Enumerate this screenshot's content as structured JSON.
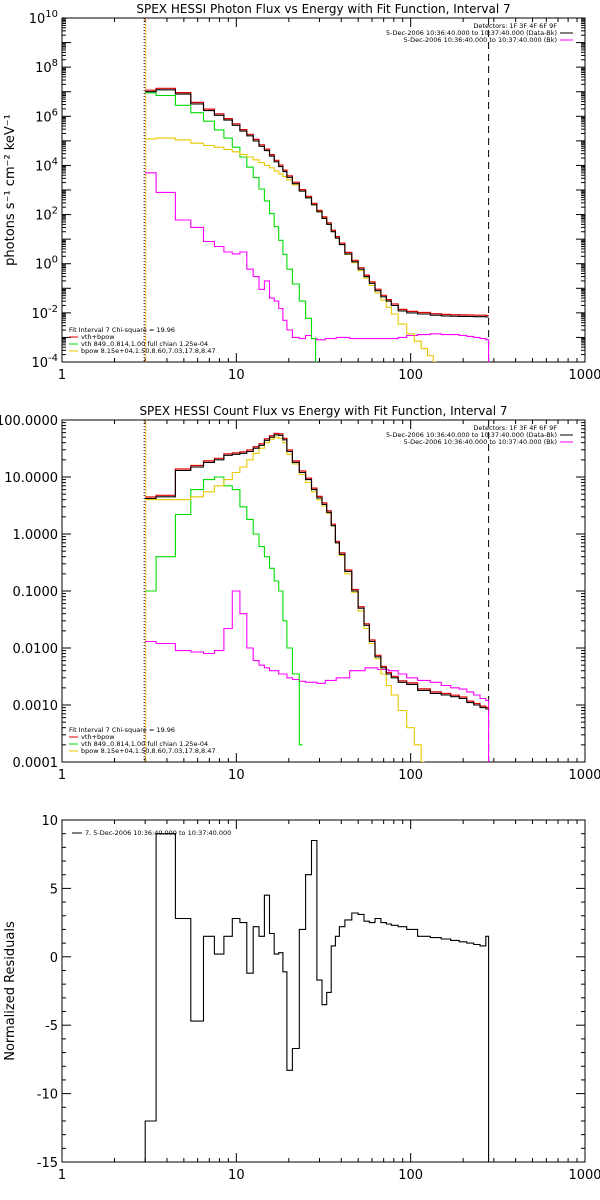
{
  "colors": {
    "data": "#000000",
    "background_sub": "#ff00ff",
    "thermal": "#00dd00",
    "power_law": "#e8c800",
    "total_fit": "#e00000",
    "fit_range_marker": "#ff8c00"
  },
  "chart_data": [
    {
      "type": "line",
      "title": "SPEX HESSI Photon Flux vs Energy with Fit Function, Interval 7",
      "xlabel": "",
      "ylabel": "photons s⁻¹ cm⁻² keV⁻¹",
      "xscale": "log",
      "yscale": "log",
      "xlim": [
        1,
        1000
      ],
      "ylim": [
        0.0001,
        10000000000
      ],
      "x_ticks": [
        "1",
        "10",
        "100",
        "1000"
      ],
      "y_ticks": [
        {
          "value": 0.0001,
          "base": "10",
          "exp": "-4"
        },
        {
          "value": 0.01,
          "base": "10",
          "exp": "-2"
        },
        {
          "value": 1,
          "base": "10",
          "exp": "0"
        },
        {
          "value": 100,
          "base": "10",
          "exp": "2"
        },
        {
          "value": 10000,
          "base": "10",
          "exp": "4"
        },
        {
          "value": 1000000,
          "base": "10",
          "exp": "6"
        },
        {
          "value": 100000000,
          "base": "10",
          "exp": "8"
        },
        {
          "value": 10000000000,
          "base": "10",
          "exp": "10"
        }
      ],
      "vlines": [
        {
          "x": 3,
          "style": "dotted"
        },
        {
          "x": 280,
          "style": "dashed"
        }
      ],
      "legend_right": {
        "position": "top-right",
        "lines": [
          "Detectors: 1F 3F 4F 6F 9F",
          "5-Dec-2006 10:36:40.000 to 10:37:40.000 (Data-Bk)",
          "5-Dec-2006 10:36:40.000 to 10:37:40.000 (Bk)"
        ]
      },
      "legend_left": {
        "position": "bottom-left",
        "header": "Fit Interval  7    Chi-square = 19.96",
        "entries": [
          {
            "label": "vth+bpow",
            "series": "total_fit"
          },
          {
            "label": "vth 849.,0.814,1.00  full chian 1.25e-04",
            "series": "thermal"
          },
          {
            "label": "bpow  8.15e+04,1.50,8.60,7.03,17.8,8.47",
            "series": "power_law"
          }
        ]
      },
      "series": [
        {
          "key": "data",
          "color": "data",
          "x": [
            3,
            4,
            5,
            6,
            7,
            8,
            9,
            10,
            11,
            12,
            13,
            14,
            15,
            16,
            17,
            18,
            19,
            20,
            22,
            24,
            26,
            28,
            30,
            32,
            34,
            36,
            38,
            40,
            44,
            48,
            52,
            56,
            60,
            65,
            70,
            75,
            80,
            90,
            100,
            120,
            140,
            160,
            180,
            200,
            220,
            240,
            260,
            280
          ],
          "y": [
            10000000,
            12000000,
            8000000,
            3200000,
            1700000,
            1100000,
            700000,
            430000,
            250000,
            160000,
            100000,
            60000,
            40000,
            24000,
            14000,
            9000,
            5600,
            3300,
            1800,
            900,
            480,
            250,
            130,
            70,
            40,
            20,
            11,
            6,
            2.5,
            1.2,
            0.6,
            0.3,
            0.16,
            0.08,
            0.045,
            0.03,
            0.02,
            0.012,
            0.01,
            0.009,
            0.008,
            0.0075,
            0.0073,
            0.0072,
            0.0071,
            0.007,
            0.007,
            0.0068
          ]
        },
        {
          "key": "power_law",
          "color": "power_law",
          "x": [
            3,
            4,
            5,
            6,
            7,
            8,
            9,
            10,
            11,
            12,
            13,
            14,
            15,
            16,
            17,
            18,
            19,
            20,
            22,
            24,
            26,
            28,
            30,
            32,
            34,
            36,
            38,
            40,
            44,
            48,
            52,
            56,
            60,
            65,
            70,
            75,
            80,
            90,
            100,
            110,
            120,
            130,
            140
          ],
          "y": [
            120000,
            130000,
            110000,
            80000,
            65000,
            55000,
            45000,
            36000,
            28000,
            22000,
            17000,
            13000,
            10000,
            8000,
            6000,
            4500,
            3500,
            2600,
            1600,
            900,
            500,
            270,
            140,
            75,
            40,
            21,
            11,
            6,
            2.4,
            1.1,
            0.52,
            0.26,
            0.13,
            0.065,
            0.033,
            0.017,
            0.009,
            0.0035,
            0.0014,
            0.0007,
            0.00035,
            0.00018,
            0.0001
          ]
        },
        {
          "key": "thermal",
          "color": "thermal",
          "x": [
            3,
            4,
            5,
            6,
            7,
            8,
            9,
            10,
            11,
            12,
            13,
            14,
            15,
            16,
            17,
            18,
            19,
            20,
            22,
            24,
            26,
            28,
            29
          ],
          "y": [
            9000000,
            7000000,
            2800000,
            1400000,
            630000,
            280000,
            130000,
            55000,
            22000,
            8500,
            3200,
            1100,
            360,
            110,
            32,
            9,
            2.4,
            0.6,
            0.15,
            0.03,
            0.006,
            0.0009,
            0.0001
          ]
        },
        {
          "key": "background_sub",
          "color": "background_sub",
          "x": [
            3,
            4,
            5,
            6,
            7,
            8,
            9,
            10,
            11,
            12,
            13,
            14,
            15,
            16,
            17,
            18,
            19,
            20,
            22,
            24,
            26,
            28,
            30,
            35,
            40,
            50,
            60,
            70,
            80,
            90,
            100,
            120,
            140,
            160,
            180,
            200,
            220,
            240,
            260,
            280
          ],
          "y": [
            5000,
            800,
            60,
            30,
            8,
            5,
            3,
            2.5,
            3,
            0.6,
            0.3,
            0.09,
            0.2,
            0.04,
            0.03,
            0.015,
            0.005,
            0.002,
            0.001,
            0.0009,
            0.0012,
            0.0009,
            0.0008,
            0.0009,
            0.001,
            0.0009,
            0.0009,
            0.0009,
            0.0009,
            0.001,
            0.0012,
            0.0013,
            0.0014,
            0.0013,
            0.0013,
            0.0012,
            0.0011,
            0.001,
            0.0009,
            0.0008
          ]
        }
      ]
    },
    {
      "type": "line",
      "title": "SPEX HESSI Count Flux vs Energy with Fit Function, Interval 7",
      "xlabel": "",
      "ylabel": "",
      "xscale": "log",
      "yscale": "log",
      "xlim": [
        1,
        1000
      ],
      "ylim": [
        0.0001,
        100
      ],
      "x_ticks": [
        "1",
        "10",
        "100",
        "1000"
      ],
      "y_ticks": [
        {
          "value": 0.0001,
          "label": "0.0001"
        },
        {
          "value": 0.001,
          "label": "0.0010"
        },
        {
          "value": 0.01,
          "label": "0.0100"
        },
        {
          "value": 0.1,
          "label": "0.1000"
        },
        {
          "value": 1,
          "label": "1.0000"
        },
        {
          "value": 10,
          "label": "10.0000"
        },
        {
          "value": 100,
          "label": "100.0000"
        }
      ],
      "vlines": [
        {
          "x": 3,
          "style": "dotted"
        },
        {
          "x": 280,
          "style": "dashed"
        }
      ],
      "legend_right": {
        "position": "top-right",
        "lines": [
          "Detectors: 1F 3F 4F 6F 9F",
          "5-Dec-2006 10:36:40.000 to 10:37:40.000 (Data-Bk)",
          "5-Dec-2006 10:36:40.000 to 10:37:40.000 (Bk)"
        ]
      },
      "legend_left": {
        "position": "bottom-left",
        "header": "Fit Interval  7    Chi-square = 19.96",
        "entries": [
          {
            "label": "vth+bpow",
            "series": "total_fit"
          },
          {
            "label": "vth 849.,0.814,1.00  full chian 1.25e-04",
            "series": "thermal"
          },
          {
            "label": "bpow  8.15e+04,1.50,8.60,7.03,17.8,8.47",
            "series": "power_law"
          }
        ]
      },
      "series": [
        {
          "key": "data",
          "color": "data",
          "x": [
            3,
            4,
            5,
            6,
            7,
            8,
            9,
            10,
            11,
            12,
            13,
            14,
            15,
            16,
            17,
            18,
            19,
            20,
            22,
            24,
            26,
            28,
            30,
            32,
            34,
            36,
            38,
            40,
            44,
            48,
            52,
            56,
            60,
            65,
            70,
            75,
            80,
            90,
            100,
            120,
            140,
            160,
            180,
            200,
            220,
            240,
            260,
            280
          ],
          "y": [
            4.2,
            4.5,
            13,
            15,
            18,
            20,
            24,
            25,
            26,
            28,
            32,
            36,
            44,
            50,
            55,
            54,
            45,
            28,
            18,
            12,
            9,
            6,
            4.3,
            3.3,
            2.4,
            1.4,
            0.7,
            0.44,
            0.22,
            0.1,
            0.05,
            0.025,
            0.013,
            0.007,
            0.0045,
            0.0035,
            0.003,
            0.0025,
            0.0023,
            0.0018,
            0.0016,
            0.0015,
            0.0014,
            0.0013,
            0.0011,
            0.001,
            0.0009,
            0.00085
          ]
        },
        {
          "key": "power_law",
          "color": "power_law",
          "x": [
            3,
            4,
            5,
            6,
            7,
            8,
            9,
            10,
            11,
            12,
            13,
            14,
            15,
            16,
            17,
            18,
            19,
            20,
            22,
            24,
            26,
            28,
            30,
            32,
            34,
            36,
            38,
            40,
            44,
            48,
            52,
            56,
            60,
            65,
            70,
            75,
            80,
            90,
            100,
            110,
            120
          ],
          "y": [
            4,
            4,
            4,
            4.5,
            5.5,
            7,
            9,
            12,
            15,
            20,
            26,
            32,
            40,
            46,
            50,
            48,
            40,
            25,
            17,
            11,
            8,
            5.5,
            4,
            3.1,
            2.3,
            1.4,
            0.7,
            0.42,
            0.2,
            0.095,
            0.045,
            0.022,
            0.012,
            0.0065,
            0.0035,
            0.0022,
            0.0015,
            0.0008,
            0.0004,
            0.0002,
            0.0001
          ]
        },
        {
          "key": "thermal",
          "color": "thermal",
          "x": [
            3,
            4,
            5,
            6,
            7,
            8,
            9,
            10,
            11,
            12,
            13,
            14,
            15,
            16,
            17,
            18,
            19,
            20,
            22,
            24
          ],
          "y": [
            0.1,
            0.4,
            2.2,
            6,
            9,
            10,
            7,
            6,
            3,
            1.8,
            1,
            0.6,
            0.4,
            0.25,
            0.15,
            0.1,
            0.03,
            0.01,
            0.0035,
            0.0002
          ]
        },
        {
          "key": "background_sub",
          "color": "background_sub",
          "x": [
            3,
            4,
            5,
            6,
            7,
            8,
            9,
            10,
            11,
            12,
            13,
            14,
            15,
            16,
            17,
            18,
            19,
            20,
            22,
            24,
            26,
            28,
            30,
            35,
            40,
            50,
            60,
            70,
            80,
            90,
            100,
            120,
            140,
            160,
            180,
            200,
            220,
            240,
            260,
            280
          ],
          "y": [
            0.013,
            0.012,
            0.009,
            0.0085,
            0.008,
            0.009,
            0.022,
            0.1,
            0.04,
            0.01,
            0.006,
            0.005,
            0.0045,
            0.004,
            0.004,
            0.0035,
            0.0035,
            0.003,
            0.0028,
            0.0026,
            0.0025,
            0.0025,
            0.0024,
            0.0027,
            0.003,
            0.004,
            0.0045,
            0.0042,
            0.004,
            0.0035,
            0.003,
            0.0027,
            0.0025,
            0.0022,
            0.002,
            0.0019,
            0.0017,
            0.0015,
            0.0013,
            0.0012
          ]
        }
      ]
    },
    {
      "type": "line",
      "title": "",
      "xlabel": "",
      "ylabel": "Normalized Residuals",
      "xscale": "log",
      "yscale": "linear",
      "xlim": [
        1,
        1000
      ],
      "ylim": [
        -15,
        10
      ],
      "x_ticks": [
        "1",
        "10",
        "100",
        "1000"
      ],
      "y_ticks": [
        {
          "value": -15,
          "label": "-15"
        },
        {
          "value": -10,
          "label": "-10"
        },
        {
          "value": -5,
          "label": "-5"
        },
        {
          "value": 0,
          "label": "0"
        },
        {
          "value": 5,
          "label": "5"
        },
        {
          "value": 10,
          "label": "10"
        }
      ],
      "legend_left": {
        "position": "top-left",
        "entries": [
          {
            "label": "7.  5-Dec-2006 10:36:40.000 to 10:37:40.000",
            "series": "data"
          }
        ]
      },
      "series": [
        {
          "key": "data",
          "color": "data",
          "x": [
            3,
            4,
            5,
            6,
            7,
            8,
            9,
            10,
            11,
            12,
            13,
            14,
            15,
            16,
            17,
            18,
            19,
            20,
            22,
            24,
            26,
            28,
            30,
            32,
            34,
            36,
            38,
            40,
            44,
            48,
            52,
            56,
            60,
            65,
            70,
            75,
            80,
            90,
            100,
            120,
            140,
            160,
            180,
            200,
            220,
            240,
            260,
            280
          ],
          "y": [
            -12,
            9,
            2.8,
            -4.7,
            1.5,
            0.2,
            1.5,
            2.8,
            2.5,
            -1.2,
            2.2,
            1.5,
            4.5,
            1.7,
            0.2,
            0.3,
            -1.1,
            -8.3,
            -6.7,
            2.0,
            6.0,
            8.5,
            -1.7,
            -3.5,
            -2.6,
            0.8,
            1.5,
            2.2,
            2.7,
            3.2,
            3.1,
            2.6,
            2.5,
            2.8,
            2.5,
            2.4,
            2.3,
            2.2,
            2.0,
            1.5,
            1.4,
            1.3,
            1.2,
            1.1,
            1.0,
            0.9,
            0.8,
            1.5
          ]
        }
      ]
    }
  ]
}
